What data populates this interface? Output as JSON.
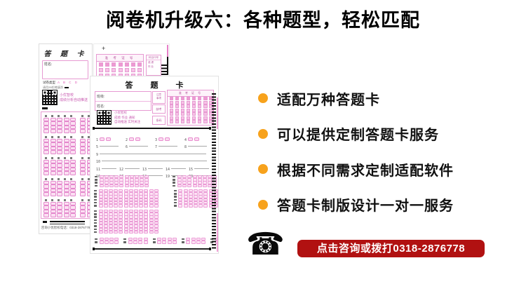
{
  "header": {
    "title": "阅卷机升级六：各种题型，轻松匹配"
  },
  "features": {
    "bullet_color": "#F7A21C",
    "items": [
      {
        "label": "适配万种答题卡"
      },
      {
        "label": "可以提供定制答题卡服务"
      },
      {
        "label": "根据不同需求定制适配软件"
      },
      {
        "label": "答题卡制版设计一对一服务"
      }
    ]
  },
  "contact": {
    "phone_icon": "telephone-icon",
    "phone_glyph": "☎",
    "banner_text": "点击咨询或拨打0318-2876778",
    "banner_bg": "#B11111",
    "banner_text_color": "#FFFFFF"
  },
  "card_left": {
    "title": "答 题 卡",
    "name_label": "姓名:",
    "paper_type_label": "试卷类型",
    "paper_type_options": "A B C D",
    "mark_note": "请用2B铅笔填涂",
    "qr_caption_line1": "小优智校",
    "qr_caption_line2": "成绩分析自动推送",
    "footer": "咨询小优智校电话：0318-2876778"
  },
  "card_top": {
    "plus_mark": "+",
    "exam_no_label": "准 考 证 号",
    "subject_code_label": "科目代号",
    "subject_line1": "成 绩",
    "subject_line2": "作 业"
  },
  "card_main": {
    "title": "答 题 卡",
    "class_label": "班级:",
    "name_label": "姓名:",
    "notice_line1": "注意",
    "notice_line2": "事项",
    "box2_label": "缺考",
    "box3_label": "条码",
    "exam_no_label": "准 考 证 号",
    "qr_caption_line1": "小优智校",
    "qr_caption_line2": "成绩 作业 通知",
    "qr_caption_line3": "自动推送 实时关注"
  },
  "grids": {
    "card1_grid": {
      "bands": 5,
      "groups": 2,
      "cols": 5,
      "rows": 4,
      "start": 1
    },
    "card2_exam": {
      "cols": 9,
      "rows": 3
    },
    "card3_exam": {
      "cols": 10,
      "rows": 7
    },
    "card3_secA": {
      "groups": 2,
      "rows": 4,
      "cols": 10,
      "start": 21
    },
    "card3_secB": {
      "groups": 2,
      "rows": 6,
      "cols": 12,
      "start": 29
    },
    "card3_secC": {
      "groups": 1,
      "rows": 8,
      "cols": 12,
      "start": 41
    },
    "card3_secD": {
      "groups": 5,
      "rows": 2,
      "cols": 4,
      "start": 49
    },
    "rows": {
      "q1_4": {
        "start": 1,
        "count": 4,
        "type": "bubbles",
        "bubbles": 2,
        "item_w": 42
      },
      "q5_8": {
        "start": 5,
        "count": 4,
        "type": "line",
        "line_w": 27,
        "item_w": 42
      },
      "q9": {
        "start": 9,
        "count": 1,
        "type": "line",
        "line_w": 152
      },
      "q10": {
        "start": 10,
        "count": 1,
        "type": "line",
        "line_w": 150
      },
      "q11_15": {
        "start": 11,
        "count": 5,
        "type": "line",
        "line_w": 21,
        "item_w": 33
      },
      "q16_20": {
        "start": 16,
        "count": 5,
        "type": "line",
        "line_w": 21,
        "item_w": 33
      }
    }
  },
  "colors": {
    "accent_orange": "#F7A21C",
    "banner_red": "#B11111",
    "card_pink_border": "#E79AD2",
    "bubble_pink": "#F6C3E6",
    "title_black": "#000000"
  }
}
